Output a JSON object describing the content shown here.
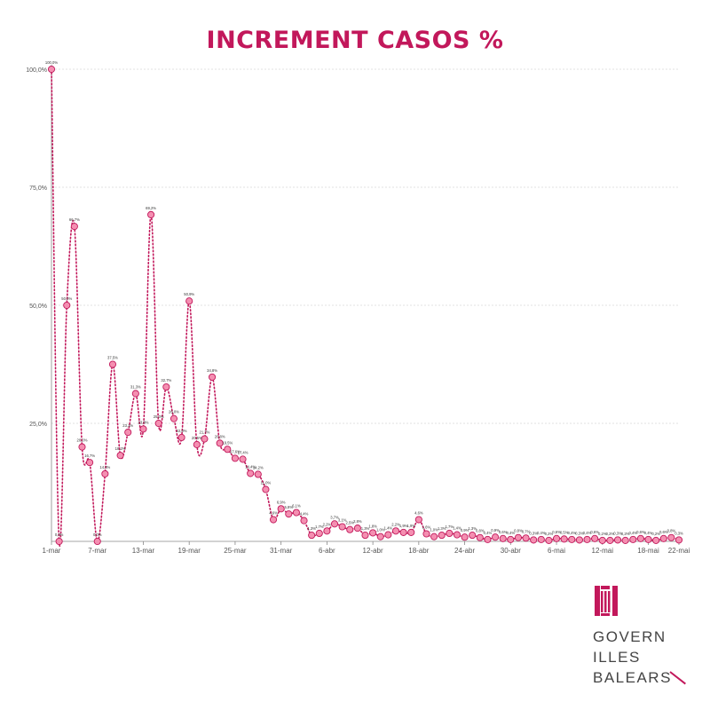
{
  "title": "INCREMENT CASOS %",
  "logo": {
    "line1": "GOVERN",
    "line2": "ILLES",
    "line3": "BALEARS"
  },
  "colors": {
    "accent": "#c2185b",
    "marker_fill": "#f48fb1",
    "grid": "#d8d8d8"
  },
  "chart_data": {
    "type": "line",
    "title": "INCREMENT CASOS %",
    "xlabel": "",
    "ylabel": "",
    "ylim": [
      0,
      100
    ],
    "yticks": [
      0,
      25,
      50,
      75,
      100
    ],
    "ytick_labels": [
      "",
      "25,0%",
      "50,0%",
      "75,0%",
      "100,0%"
    ],
    "xtick_labels": [
      "1-mar",
      "7-mar",
      "13-mar",
      "19-mar",
      "25-mar",
      "31-mar",
      "6-abr",
      "12-abr",
      "18-abr",
      "24-abr",
      "30-abr",
      "6-mai",
      "12-mai",
      "18-mai",
      "22-mai"
    ],
    "xtick_index": [
      0,
      6,
      12,
      18,
      24,
      30,
      36,
      42,
      48,
      54,
      60,
      66,
      72,
      78,
      82
    ],
    "grid": true,
    "line_style": "dotted",
    "series": [
      {
        "values": [
          100.0,
          0.0,
          50.0,
          66.7,
          20.0,
          16.7,
          0.0,
          14.3,
          37.5,
          18.2,
          23.1,
          31.3,
          23.8,
          69.2,
          25.0,
          32.7,
          26.0,
          22.0,
          50.9,
          20.5,
          21.7,
          34.8,
          20.8,
          19.5,
          17.6,
          17.4,
          14.4,
          14.2,
          11.0,
          4.6,
          6.9,
          5.8,
          6.1,
          4.4,
          1.3,
          1.7,
          2.2,
          3.7,
          3.1,
          2.5,
          2.8,
          1.3,
          1.8,
          1.0,
          1.4,
          2.2,
          1.9,
          1.9,
          4.6,
          1.6,
          1.0,
          1.3,
          1.7,
          1.4,
          0.9,
          1.3,
          0.8,
          0.4,
          0.9,
          0.6,
          0.4,
          0.8,
          0.7,
          0.3,
          0.4,
          0.2,
          0.6,
          0.5,
          0.4,
          0.3,
          0.4,
          0.6,
          0.2,
          0.2,
          0.3,
          0.2,
          0.4,
          0.6,
          0.4,
          0.2,
          0.6,
          0.8,
          0.3
        ],
        "labels": [
          "100,0%",
          "0,0%",
          "50,0%",
          "66,7%",
          "20,0%",
          "16,7%",
          "0,0%",
          "14,3%",
          "37,5%",
          "18,2%",
          "23,1%",
          "31,3%",
          "23,8%",
          "69,2%",
          "25,0%",
          "32,7%",
          "26,0%",
          "22,0%",
          "50,9%",
          "20,5%",
          "21,7%",
          "34,8%",
          "20,8%",
          "19,5%",
          "17,6%",
          "17,4%",
          "14,4%",
          "14,2%",
          "11,0%",
          "4,6%",
          "6,9%",
          "5,8%",
          "6,1%",
          "4,4%",
          "1,3%",
          "1,7%",
          "2,2%",
          "3,7%",
          "3,1%",
          "2,5%",
          "2,8%",
          "1,3%",
          "1,8%",
          "1,0%",
          "1,4%",
          "2,2%",
          "1,9%",
          "1,9%",
          "4,6%",
          "1,6%",
          "1,0%",
          "1,3%",
          "1,7%",
          "1,4%",
          "0,9%",
          "1,3%",
          "0,8%",
          "0,4%",
          "0,9%",
          "0,6%",
          "0,4%",
          "0,8%",
          "0,7%",
          "0,3%",
          "0,4%",
          "0,2%",
          "0,6%",
          "0,5%",
          "0,4%",
          "0,3%",
          "0,4%",
          "0,6%",
          "0,2%",
          "0,2%",
          "0,3%",
          "0,2%",
          "0,4%",
          "0,6%",
          "0,4%",
          "0,2%",
          "0,6%",
          "0,8%",
          "0,3%"
        ]
      }
    ]
  }
}
